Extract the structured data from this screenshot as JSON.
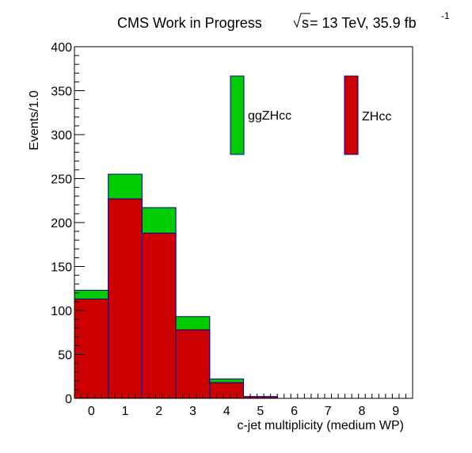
{
  "title": {
    "prefix": "CMS Work in Progress",
    "sqrt_s": "s",
    "energy": " = 13 TeV, 35.9 fb",
    "lumi_sup": "-1"
  },
  "colors": {
    "ZHcc": "#cc0000",
    "ggZHcc": "#00cc00",
    "outline": "#000099"
  },
  "chart_data": {
    "type": "bar",
    "stacked": true,
    "xlabel": "c-jet multiplicity (medium WP)",
    "ylabel": "Events/1.0",
    "xlim": [
      -0.5,
      9.5
    ],
    "ylim": [
      0,
      400
    ],
    "xticks": [
      "0",
      "1",
      "2",
      "3",
      "4",
      "5",
      "6",
      "7",
      "8",
      "9"
    ],
    "yticks": [
      "0",
      "50",
      "100",
      "150",
      "200",
      "250",
      "300",
      "350",
      "400"
    ],
    "categories": [
      0,
      1,
      2,
      3,
      4,
      5,
      6,
      7,
      8,
      9
    ],
    "series": [
      {
        "name": "ZHcc",
        "values": [
          113,
          227,
          188,
          78,
          18,
          2,
          0,
          0,
          0,
          0
        ]
      },
      {
        "name": "ggZHcc",
        "values": [
          10,
          28,
          29,
          15,
          4,
          0,
          0,
          0,
          0,
          0
        ]
      }
    ],
    "legend": [
      {
        "name": "ggZHcc"
      },
      {
        "name": "ZHcc"
      }
    ],
    "grid": false
  }
}
